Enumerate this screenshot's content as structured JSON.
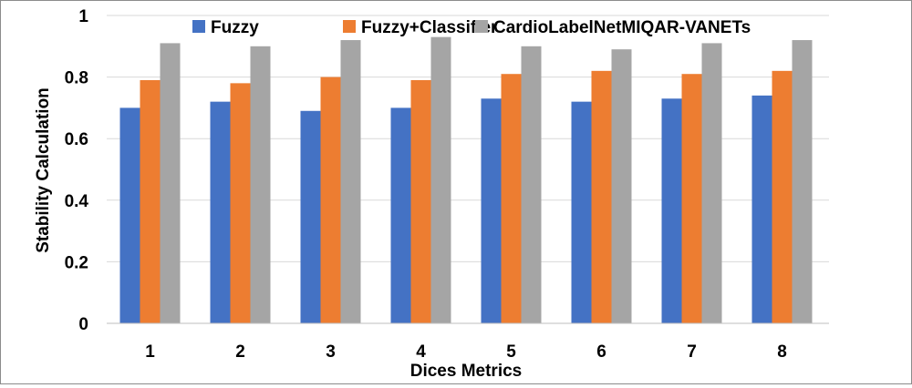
{
  "chart_data": {
    "type": "bar",
    "categories": [
      "1",
      "2",
      "3",
      "4",
      "5",
      "6",
      "7",
      "8"
    ],
    "series": [
      {
        "name": "Fuzzy",
        "color": "#4472C4",
        "values": [
          0.7,
          0.72,
          0.69,
          0.7,
          0.73,
          0.72,
          0.73,
          0.74
        ]
      },
      {
        "name": "Fuzzy+Classifier",
        "color": "#ED7D31",
        "values": [
          0.79,
          0.78,
          0.8,
          0.79,
          0.81,
          0.82,
          0.81,
          0.82
        ]
      },
      {
        "name": "CardioLabelNetMIQAR-VANETs",
        "color": "#A5A5A5",
        "values": [
          0.91,
          0.9,
          0.92,
          0.93,
          0.9,
          0.89,
          0.91,
          0.92
        ]
      }
    ],
    "xlabel": "Dices Metrics",
    "ylabel": "Stability Calculation",
    "ylim": [
      0,
      1
    ],
    "yticks": [
      "0",
      "0.2",
      "0.4",
      "0.6",
      "0.8",
      "1"
    ],
    "grid": true,
    "legend_position": "top"
  }
}
